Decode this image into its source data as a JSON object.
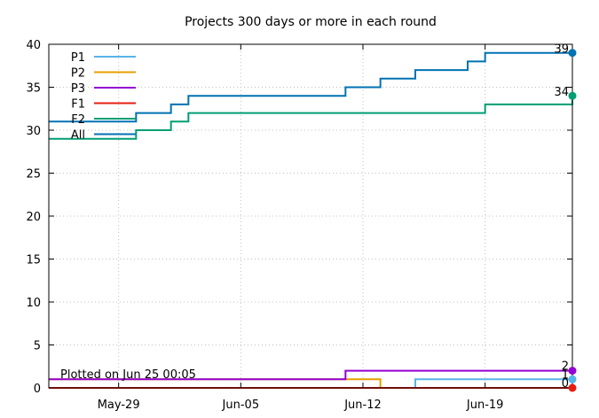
{
  "chart_data": {
    "type": "line",
    "step": true,
    "title": "Projects 300 days or more in each round",
    "xlabel": "",
    "ylabel": "",
    "ylim": [
      0,
      40
    ],
    "yticks": [
      "0",
      "5",
      "10",
      "15",
      "20",
      "25",
      "30",
      "35",
      "40"
    ],
    "xlim": [
      "2026-05-25",
      "2026-06-24"
    ],
    "xticks": [
      {
        "label": "May-29",
        "date": "2026-05-29"
      },
      {
        "label": "Jun-05",
        "date": "2026-06-05"
      },
      {
        "label": "Jun-12",
        "date": "2026-06-12"
      },
      {
        "label": "Jun-19",
        "date": "2026-06-19"
      }
    ],
    "grid": true,
    "legend_position": "top-left",
    "annotation": "Plotted on Jun 25 00:05",
    "series": [
      {
        "name": "P1",
        "color": "#56b4e9",
        "x": [
          "2026-05-25",
          "2026-06-15",
          "2026-06-24"
        ],
        "y": [
          0,
          1,
          1
        ],
        "end_label": "1"
      },
      {
        "name": "P2",
        "color": "#e69f00",
        "x": [
          "2026-05-25",
          "2026-06-11",
          "2026-06-13",
          "2026-06-24"
        ],
        "y": [
          1,
          1,
          0,
          0
        ],
        "end_label": ""
      },
      {
        "name": "P3",
        "color": "#9400d3",
        "x": [
          "2026-05-25",
          "2026-06-11",
          "2026-06-24"
        ],
        "y": [
          1,
          2,
          2
        ],
        "end_label": "2"
      },
      {
        "name": "F1",
        "color": "#e51e10",
        "x": [
          "2026-05-25",
          "2026-06-24"
        ],
        "y": [
          0,
          0
        ],
        "end_label": "0"
      },
      {
        "name": "F2",
        "color": "#009e73",
        "x": [
          "2026-05-25",
          "2026-05-30",
          "2026-06-01",
          "2026-06-02",
          "2026-06-18",
          "2026-06-19",
          "2026-06-24"
        ],
        "y": [
          29,
          30,
          31,
          32,
          32,
          33,
          34
        ],
        "end_label": "34"
      },
      {
        "name": "All",
        "color": "#0072b2",
        "x": [
          "2026-05-25",
          "2026-05-30",
          "2026-06-01",
          "2026-06-02",
          "2026-06-11",
          "2026-06-13",
          "2026-06-15",
          "2026-06-18",
          "2026-06-19",
          "2026-06-24"
        ],
        "y": [
          31,
          32,
          33,
          34,
          35,
          36,
          37,
          38,
          39,
          39
        ],
        "end_label": "39"
      }
    ]
  }
}
